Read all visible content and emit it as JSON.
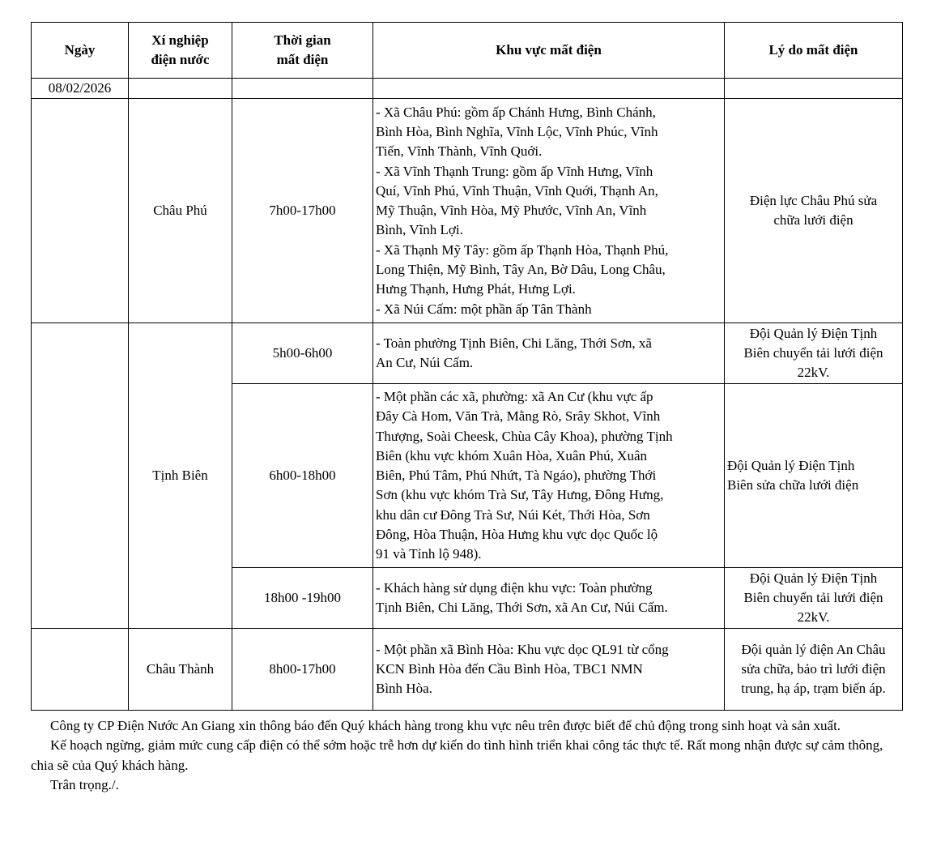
{
  "headers": [
    "Ngày",
    "Xí nghiệp\nđiện nước",
    "Thời gian\nmất điện",
    "Khu vực mất điện",
    "Lý do mất điện"
  ],
  "date": "08/02/2026",
  "rows": [
    {
      "unit": "Châu Phú",
      "time": "7h00-17h00",
      "area": "- Xã Châu Phú: gồm ấp Chánh Hưng, Bình Chánh,\nBình Hòa, Bình Nghĩa, Vĩnh Lộc, Vĩnh Phúc, Vĩnh\nTiến, Vĩnh Thành, Vĩnh Quới.\n- Xã Vĩnh Thạnh Trung: gồm ấp Vĩnh Hưng, Vĩnh\nQuí, Vĩnh Phú, Vĩnh Thuận, Vĩnh Quới, Thạnh An,\nMỹ Thuận, Vĩnh Hòa, Mỹ Phước, Vĩnh An, Vĩnh\nBình, Vĩnh Lợi.\n- Xã Thạnh Mỹ Tây: gồm ấp Thạnh Hòa, Thạnh Phú,\nLong Thiện, Mỹ Bình, Tây An, Bờ Dâu, Long Châu,\nHưng Thạnh, Hưng Phát, Hưng Lợi.\n- Xã Núi Cấm: một phần ấp Tân Thành",
      "reason": "Điện lực Châu Phú sửa\nchữa lưới điện"
    },
    {
      "unit": "Tịnh Biên",
      "time": "5h00-6h00",
      "area": "- Toàn phường Tịnh Biên, Chi Lăng, Thới Sơn, xã\nAn Cư, Núi Cấm.",
      "reason": "Đội Quản lý Điện Tịnh\nBiên chuyển tải lưới điện\n22kV."
    },
    {
      "time": "6h00-18h00",
      "area": "- Một phần các xã, phường: xã An Cư (khu vực ấp\nĐây Cà Hom, Văn Trà, Mằng Rò, Srây Skhot, Vĩnh\nThượng, Soài Cheesk, Chùa Cây Khoa), phường Tịnh\nBiên (khu vực khóm Xuân Hòa, Xuân Phú, Xuân\nBiên, Phú Tâm, Phú Nhứt, Tà Ngáo), phường Thới\nSơn (khu vực khóm Trà Sư, Tây Hưng, Đông Hưng,\nkhu dân cư Đông Trà Sư, Núi Két, Thới Hòa, Sơn\nĐông, Hòa Thuận, Hòa Hưng khu vực dọc Quốc lộ\n91 và Tỉnh lộ 948).",
      "reason": "Đội Quản lý Điện Tịnh\nBiên sửa chữa lưới điện"
    },
    {
      "time": "18h00 -19h00",
      "area": "- Khách hàng sử dụng điện khu vực: Toàn phường\nTịnh Biên, Chi Lăng, Thới Sơn, xã An Cư, Núi Cấm.",
      "reason": "Đội Quản lý Điện Tịnh\nBiên chuyển tải lưới điện\n22kV."
    },
    {
      "unit": "Châu Thành",
      "time": "8h00-17h00",
      "area": "- Một phần xã Bình Hòa: Khu vực dọc QL91 từ cổng\nKCN Bình Hòa đến Cầu Bình Hòa, TBC1 NMN\nBình Hòa.",
      "reason": "Đội quản lý điện An Châu\nsửa chữa, bảo trì lưới điện\ntrung, hạ áp, trạm biến áp."
    }
  ],
  "notes": [
    "Công ty CP Điện Nước An Giang xin thông báo đến Quý khách hàng trong khu vực nêu trên được biết để chủ động trong sinh hoạt và sản xuất.",
    "Kế hoạch ngừng, giảm mức cung cấp điện có thể sớm hoặc trễ hơn dự kiến do tình hình triển khai công tác thực tế. Rất mong nhận được sự cảm thông, chia sẽ của Quý khách hàng.",
    "Trân trọng./."
  ]
}
